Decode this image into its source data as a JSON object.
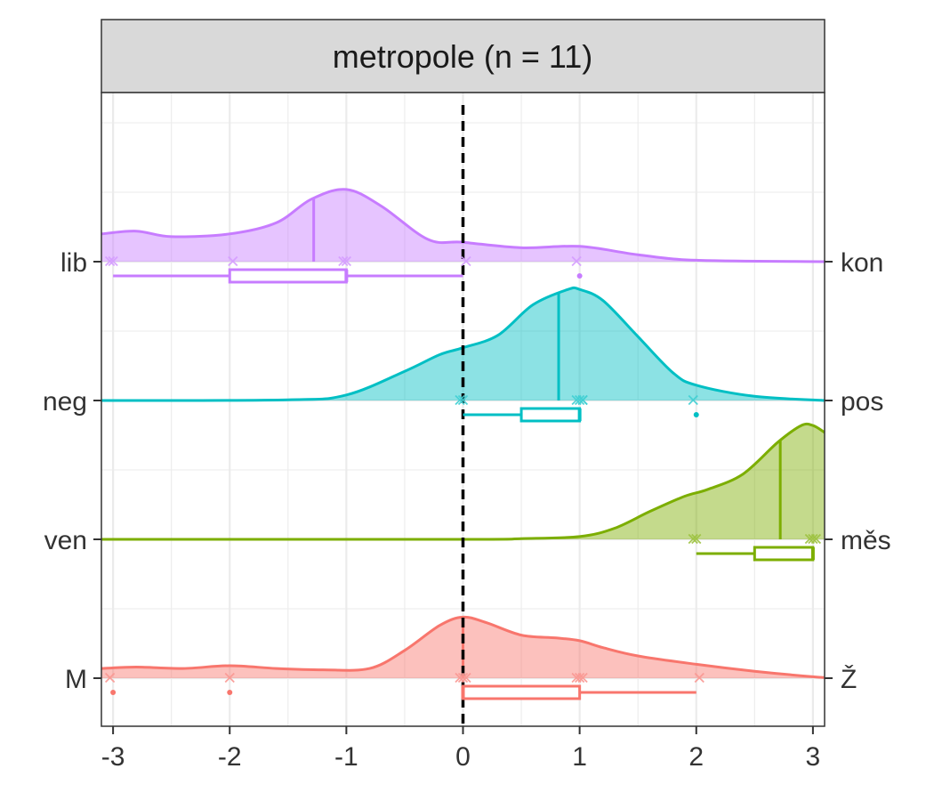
{
  "chart_data": {
    "type": "ridgeline-density-boxplot",
    "facet_title": "metropole (n = 11)",
    "xlim": [
      -3.1,
      3.1
    ],
    "x_ticks": [
      -3,
      -2,
      -1,
      0,
      1,
      2,
      3
    ],
    "x_tick_labels": [
      "-3",
      "-2",
      "-1",
      "0",
      "1",
      "2",
      "3"
    ],
    "reference_line_x": 0,
    "grid": true,
    "series": [
      {
        "left_label": "M",
        "right_label": "Ž",
        "color": "#F8766D",
        "points": [
          -3,
          -2,
          0,
          0,
          0,
          1,
          1,
          1,
          2
        ],
        "outliers": [
          -3,
          -2
        ],
        "box": {
          "whisker_low": 0,
          "q1": 0,
          "median": 0,
          "q3": 1,
          "whisker_high": 2
        },
        "median": 0,
        "density": [
          [
            -3.1,
            0.07
          ],
          [
            -2.8,
            0.08
          ],
          [
            -2.4,
            0.07
          ],
          [
            -2.0,
            0.09
          ],
          [
            -1.6,
            0.07
          ],
          [
            -1.2,
            0.06
          ],
          [
            -0.8,
            0.07
          ],
          [
            -0.5,
            0.2
          ],
          [
            -0.2,
            0.38
          ],
          [
            0.0,
            0.44
          ],
          [
            0.2,
            0.4
          ],
          [
            0.5,
            0.31
          ],
          [
            0.8,
            0.29
          ],
          [
            1.0,
            0.27
          ],
          [
            1.2,
            0.22
          ],
          [
            1.5,
            0.16
          ],
          [
            2.0,
            0.1
          ],
          [
            2.5,
            0.05
          ],
          [
            3.0,
            0.01
          ],
          [
            3.1,
            0.005
          ]
        ]
      },
      {
        "left_label": "ven",
        "right_label": "měs",
        "color": "#7CAE00",
        "points": [
          2,
          2,
          3,
          3,
          3
        ],
        "outliers": [],
        "box": {
          "whisker_low": 2,
          "q1": 2.5,
          "median": 3,
          "q3": 3,
          "whisker_high": 3
        },
        "median": 2.72,
        "density": [
          [
            -3.1,
            0.0
          ],
          [
            0.0,
            0.0
          ],
          [
            0.5,
            0.005
          ],
          [
            1.0,
            0.02
          ],
          [
            1.3,
            0.08
          ],
          [
            1.6,
            0.2
          ],
          [
            1.9,
            0.31
          ],
          [
            2.1,
            0.36
          ],
          [
            2.4,
            0.47
          ],
          [
            2.7,
            0.7
          ],
          [
            2.9,
            0.82
          ],
          [
            3.0,
            0.82
          ],
          [
            3.1,
            0.77
          ]
        ]
      },
      {
        "left_label": "neg",
        "right_label": "pos",
        "color": "#00BFC4",
        "points": [
          0,
          0,
          1,
          1,
          1,
          1,
          2
        ],
        "outliers": [
          2
        ],
        "box": {
          "whisker_low": 0,
          "q1": 0.5,
          "median": 1,
          "q3": 1,
          "whisker_high": 1
        },
        "median": 0.82,
        "density": [
          [
            -3.1,
            0.0
          ],
          [
            -1.5,
            0.005
          ],
          [
            -1.0,
            0.04
          ],
          [
            -0.5,
            0.21
          ],
          [
            -0.2,
            0.33
          ],
          [
            0.0,
            0.38
          ],
          [
            0.3,
            0.47
          ],
          [
            0.6,
            0.69
          ],
          [
            0.9,
            0.8
          ],
          [
            1.0,
            0.8
          ],
          [
            1.2,
            0.72
          ],
          [
            1.5,
            0.46
          ],
          [
            1.8,
            0.2
          ],
          [
            2.0,
            0.11
          ],
          [
            2.5,
            0.03
          ],
          [
            3.1,
            0.0
          ]
        ]
      },
      {
        "left_label": "lib",
        "right_label": "kon",
        "color": "#C77CFF",
        "points": [
          -3,
          -3,
          -2,
          -1,
          -1,
          0,
          1
        ],
        "outliers": [
          1
        ],
        "box": {
          "whisker_low": -3,
          "q1": -2,
          "median": -1,
          "q3": -1,
          "whisker_high": 0
        },
        "median": -1.28,
        "density": [
          [
            -3.1,
            0.2
          ],
          [
            -2.8,
            0.22
          ],
          [
            -2.5,
            0.18
          ],
          [
            -2.0,
            0.2
          ],
          [
            -1.6,
            0.28
          ],
          [
            -1.3,
            0.45
          ],
          [
            -1.0,
            0.52
          ],
          [
            -0.7,
            0.4
          ],
          [
            -0.3,
            0.16
          ],
          [
            0.0,
            0.14
          ],
          [
            0.5,
            0.1
          ],
          [
            1.0,
            0.11
          ],
          [
            1.5,
            0.05
          ],
          [
            2.0,
            0.01
          ],
          [
            3.1,
            0.0
          ]
        ]
      }
    ]
  }
}
